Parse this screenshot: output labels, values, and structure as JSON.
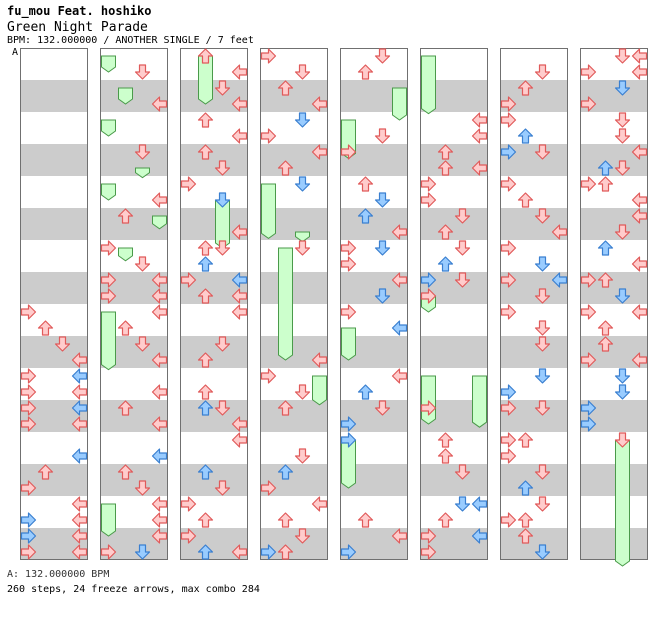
{
  "header": {
    "artist": "fu_mou Feat. hoshiko",
    "title": "Green Night Parade",
    "meta": "BPM: 132.000000 / ANOTHER SINGLE / 7 feet"
  },
  "section_label": "A",
  "footer": {
    "bpm_line": "A: 132.000000 BPM",
    "stats_line": "260 steps, 24 freeze arrows, max combo 284"
  },
  "colors": {
    "stripe": "#cccccc",
    "arrow_red_fill": "#ffcccc",
    "arrow_red_stroke": "#e05a5a",
    "arrow_blue_fill": "#99ccff",
    "arrow_blue_stroke": "#3a7fd0",
    "freeze_fill": "#ccffcc",
    "freeze_stroke": "#4a9a4a"
  },
  "chart_data": {
    "type": "step-chart",
    "columns": 8,
    "beats_per_column": 16,
    "lane_order": [
      "left",
      "down",
      "up",
      "right"
    ],
    "notes": [
      [
        {
          "b": 8.0,
          "l": 0
        },
        {
          "b": 8.5,
          "l": 1
        },
        {
          "b": 9.0,
          "l": 2
        },
        {
          "b": 9.5,
          "l": 3
        },
        {
          "b": 10.0,
          "l": 0
        },
        {
          "b": 10.0,
          "l": 3,
          "c": "blue"
        },
        {
          "b": 10.5,
          "l": 0
        },
        {
          "b": 10.5,
          "l": 3
        },
        {
          "b": 11.0,
          "l": 0
        },
        {
          "b": 11.0,
          "l": 3,
          "c": "blue"
        },
        {
          "b": 11.5,
          "l": 0
        },
        {
          "b": 11.5,
          "l": 3
        },
        {
          "b": 12.5,
          "l": 3,
          "c": "blue"
        },
        {
          "b": 13.0,
          "l": 1
        },
        {
          "b": 13.5,
          "l": 0
        },
        {
          "b": 14.0,
          "l": 3
        },
        {
          "b": 14.5,
          "l": 0,
          "c": "blue"
        },
        {
          "b": 14.5,
          "l": 3
        },
        {
          "b": 15.0,
          "l": 0,
          "c": "blue"
        },
        {
          "b": 15.0,
          "l": 3
        },
        {
          "b": 15.5,
          "l": 0
        },
        {
          "b": 15.5,
          "l": 3
        }
      ],
      [
        {
          "b": 0.0,
          "l": 0,
          "fz": 0.5
        },
        {
          "b": 0.5,
          "l": 2
        },
        {
          "b": 1.0,
          "l": 1,
          "fz": 0.5
        },
        {
          "b": 1.5,
          "l": 3
        },
        {
          "b": 2.0,
          "l": 0,
          "fz": 0.5
        },
        {
          "b": 3.0,
          "l": 2
        },
        {
          "b": 3.5,
          "l": 2,
          "fz": 0.3
        },
        {
          "b": 4.0,
          "l": 0,
          "fz": 0.5
        },
        {
          "b": 4.5,
          "l": 3
        },
        {
          "b": 5.0,
          "l": 3,
          "fz": 0.4
        },
        {
          "b": 5.0,
          "l": 1
        },
        {
          "b": 6.0,
          "l": 0
        },
        {
          "b": 6.0,
          "l": 1,
          "fz": 0.4
        },
        {
          "b": 6.5,
          "l": 2
        },
        {
          "b": 7.0,
          "l": 0
        },
        {
          "b": 7.0,
          "l": 3
        },
        {
          "b": 7.5,
          "l": 0
        },
        {
          "b": 7.5,
          "l": 3
        },
        {
          "b": 8.0,
          "l": 0,
          "fz": 1.8
        },
        {
          "b": 8.0,
          "l": 3
        },
        {
          "b": 8.5,
          "l": 1
        },
        {
          "b": 9.0,
          "l": 2
        },
        {
          "b": 9.5,
          "l": 3
        },
        {
          "b": 10.5,
          "l": 3
        },
        {
          "b": 11.0,
          "l": 1
        },
        {
          "b": 11.5,
          "l": 3
        },
        {
          "b": 12.5,
          "l": 3,
          "c": "blue"
        },
        {
          "b": 13.0,
          "l": 1
        },
        {
          "b": 13.5,
          "l": 2
        },
        {
          "b": 14.0,
          "l": 0,
          "fz": 1.0
        },
        {
          "b": 14.0,
          "l": 3
        },
        {
          "b": 14.5,
          "l": 3
        },
        {
          "b": 15.0,
          "l": 3
        },
        {
          "b": 15.5,
          "l": 0
        },
        {
          "b": 15.5,
          "l": 2,
          "c": "blue"
        }
      ],
      [
        {
          "b": 0.0,
          "l": 1
        },
        {
          "b": 0.0,
          "l": 1,
          "fz": 1.5
        },
        {
          "b": 0.5,
          "l": 3
        },
        {
          "b": 1.0,
          "l": 2
        },
        {
          "b": 1.5,
          "l": 3
        },
        {
          "b": 2.0,
          "l": 1
        },
        {
          "b": 2.5,
          "l": 3
        },
        {
          "b": 3.0,
          "l": 1
        },
        {
          "b": 3.5,
          "l": 2
        },
        {
          "b": 4.0,
          "l": 0
        },
        {
          "b": 4.5,
          "l": 2,
          "c": "blue"
        },
        {
          "b": 4.5,
          "l": 2,
          "fz": 1.5
        },
        {
          "b": 5.5,
          "l": 3
        },
        {
          "b": 6.0,
          "l": 1
        },
        {
          "b": 6.0,
          "l": 2
        },
        {
          "b": 6.5,
          "l": 1,
          "c": "blue"
        },
        {
          "b": 7.0,
          "l": 0
        },
        {
          "b": 7.0,
          "l": 3,
          "c": "blue"
        },
        {
          "b": 7.5,
          "l": 1
        },
        {
          "b": 7.5,
          "l": 3
        },
        {
          "b": 8.0,
          "l": 3
        },
        {
          "b": 9.0,
          "l": 2
        },
        {
          "b": 9.5,
          "l": 1
        },
        {
          "b": 10.5,
          "l": 1
        },
        {
          "b": 11.0,
          "l": 2
        },
        {
          "b": 11.0,
          "l": 1,
          "c": "blue"
        },
        {
          "b": 11.5,
          "l": 3
        },
        {
          "b": 12.0,
          "l": 3
        },
        {
          "b": 13.0,
          "l": 1,
          "c": "blue"
        },
        {
          "b": 13.5,
          "l": 2
        },
        {
          "b": 14.0,
          "l": 0
        },
        {
          "b": 14.5,
          "l": 1
        },
        {
          "b": 15.0,
          "l": 0
        },
        {
          "b": 15.5,
          "l": 1,
          "c": "blue"
        },
        {
          "b": 15.5,
          "l": 3
        }
      ],
      [
        {
          "b": 0.0,
          "l": 0
        },
        {
          "b": 0.5,
          "l": 2
        },
        {
          "b": 1.0,
          "l": 1
        },
        {
          "b": 1.5,
          "l": 3
        },
        {
          "b": 2.0,
          "l": 2,
          "c": "blue"
        },
        {
          "b": 2.5,
          "l": 0
        },
        {
          "b": 3.0,
          "l": 3
        },
        {
          "b": 3.5,
          "l": 1
        },
        {
          "b": 4.0,
          "l": 2,
          "c": "blue"
        },
        {
          "b": 4.0,
          "l": 0,
          "fz": 1.7
        },
        {
          "b": 5.5,
          "l": 2,
          "fz": 0.3
        },
        {
          "b": 6.0,
          "l": 2
        },
        {
          "b": 6.0,
          "l": 1,
          "fz": 3.5
        },
        {
          "b": 9.5,
          "l": 3
        },
        {
          "b": 10.0,
          "l": 0
        },
        {
          "b": 10.0,
          "l": 3,
          "fz": 0.9
        },
        {
          "b": 10.5,
          "l": 2
        },
        {
          "b": 11.0,
          "l": 1
        },
        {
          "b": 12.5,
          "l": 2
        },
        {
          "b": 13.0,
          "l": 1,
          "c": "blue"
        },
        {
          "b": 13.5,
          "l": 0
        },
        {
          "b": 14.0,
          "l": 3
        },
        {
          "b": 14.5,
          "l": 1
        },
        {
          "b": 15.0,
          "l": 2
        },
        {
          "b": 15.5,
          "l": 1
        },
        {
          "b": 15.5,
          "l": 0,
          "c": "blue"
        }
      ],
      [
        {
          "b": 0.0,
          "l": 2
        },
        {
          "b": 0.5,
          "l": 1
        },
        {
          "b": 1.0,
          "l": 3,
          "fz": 1.0
        },
        {
          "b": 2.0,
          "l": 0,
          "fz": 1.2
        },
        {
          "b": 2.5,
          "l": 2
        },
        {
          "b": 3.0,
          "l": 0
        },
        {
          "b": 4.0,
          "l": 1
        },
        {
          "b": 4.5,
          "l": 2,
          "c": "blue"
        },
        {
          "b": 5.0,
          "l": 1,
          "c": "blue"
        },
        {
          "b": 5.5,
          "l": 3
        },
        {
          "b": 6.0,
          "l": 0
        },
        {
          "b": 6.0,
          "l": 2,
          "c": "blue"
        },
        {
          "b": 6.5,
          "l": 0
        },
        {
          "b": 7.0,
          "l": 3
        },
        {
          "b": 7.5,
          "l": 2,
          "c": "blue"
        },
        {
          "b": 8.0,
          "l": 0
        },
        {
          "b": 8.5,
          "l": 0,
          "fz": 1.0
        },
        {
          "b": 8.5,
          "l": 3,
          "c": "blue"
        },
        {
          "b": 10.0,
          "l": 3
        },
        {
          "b": 10.5,
          "l": 1,
          "c": "blue"
        },
        {
          "b": 11.0,
          "l": 2
        },
        {
          "b": 11.5,
          "l": 0,
          "c": "blue"
        },
        {
          "b": 12.0,
          "l": 0,
          "c": "blue"
        },
        {
          "b": 12.0,
          "l": 0,
          "fz": 1.5
        },
        {
          "b": 14.5,
          "l": 1
        },
        {
          "b": 15.0,
          "l": 3
        },
        {
          "b": 15.5,
          "l": 0,
          "c": "blue"
        }
      ],
      [
        {
          "b": 0.0,
          "l": 0,
          "fz": 1.8
        },
        {
          "b": 2.0,
          "l": 3
        },
        {
          "b": 2.5,
          "l": 3
        },
        {
          "b": 3.0,
          "l": 1
        },
        {
          "b": 3.5,
          "l": 1
        },
        {
          "b": 3.5,
          "l": 3
        },
        {
          "b": 4.0,
          "l": 0
        },
        {
          "b": 4.5,
          "l": 0
        },
        {
          "b": 5.0,
          "l": 2
        },
        {
          "b": 5.5,
          "l": 1
        },
        {
          "b": 6.0,
          "l": 2
        },
        {
          "b": 6.5,
          "l": 1,
          "c": "blue"
        },
        {
          "b": 7.0,
          "l": 0,
          "c": "blue"
        },
        {
          "b": 7.0,
          "l": 2
        },
        {
          "b": 7.5,
          "l": 0
        },
        {
          "b": 7.5,
          "l": 0,
          "fz": 0.5
        },
        {
          "b": 10.0,
          "l": 0,
          "fz": 1.5
        },
        {
          "b": 10.0,
          "l": 3,
          "fz": 1.6
        },
        {
          "b": 11.0,
          "l": 0
        },
        {
          "b": 12.0,
          "l": 1
        },
        {
          "b": 12.5,
          "l": 1
        },
        {
          "b": 13.0,
          "l": 2
        },
        {
          "b": 14.0,
          "l": 2,
          "c": "blue"
        },
        {
          "b": 14.0,
          "l": 3,
          "c": "blue"
        },
        {
          "b": 14.5,
          "l": 1
        },
        {
          "b": 15.0,
          "l": 3,
          "c": "blue"
        },
        {
          "b": 15.0,
          "l": 0
        },
        {
          "b": 15.5,
          "l": 0
        }
      ],
      [
        {
          "b": 0.5,
          "l": 2
        },
        {
          "b": 1.0,
          "l": 1
        },
        {
          "b": 1.5,
          "l": 0
        },
        {
          "b": 2.0,
          "l": 0
        },
        {
          "b": 2.5,
          "l": 1,
          "c": "blue"
        },
        {
          "b": 3.0,
          "l": 0,
          "c": "blue"
        },
        {
          "b": 3.0,
          "l": 2
        },
        {
          "b": 4.0,
          "l": 0
        },
        {
          "b": 4.5,
          "l": 1
        },
        {
          "b": 5.0,
          "l": 2
        },
        {
          "b": 5.5,
          "l": 3
        },
        {
          "b": 6.0,
          "l": 0
        },
        {
          "b": 6.5,
          "l": 2,
          "c": "blue"
        },
        {
          "b": 7.0,
          "l": 0
        },
        {
          "b": 7.0,
          "l": 3,
          "c": "blue"
        },
        {
          "b": 7.5,
          "l": 2
        },
        {
          "b": 8.0,
          "l": 0
        },
        {
          "b": 8.5,
          "l": 2
        },
        {
          "b": 9.0,
          "l": 2
        },
        {
          "b": 10.0,
          "l": 2,
          "c": "blue"
        },
        {
          "b": 10.5,
          "l": 0,
          "c": "blue"
        },
        {
          "b": 11.0,
          "l": 0
        },
        {
          "b": 11.0,
          "l": 2
        },
        {
          "b": 12.0,
          "l": 0
        },
        {
          "b": 12.0,
          "l": 1
        },
        {
          "b": 12.5,
          "l": 0
        },
        {
          "b": 13.0,
          "l": 2
        },
        {
          "b": 13.5,
          "l": 1,
          "c": "blue"
        },
        {
          "b": 14.0,
          "l": 2
        },
        {
          "b": 14.5,
          "l": 1
        },
        {
          "b": 14.5,
          "l": 0
        },
        {
          "b": 15.0,
          "l": 1
        },
        {
          "b": 15.5,
          "l": 2,
          "c": "blue"
        }
      ],
      [
        {
          "b": 0.0,
          "l": 2
        },
        {
          "b": 0.0,
          "l": 3
        },
        {
          "b": 0.5,
          "l": 0
        },
        {
          "b": 0.5,
          "l": 3
        },
        {
          "b": 1.0,
          "l": 2,
          "c": "blue"
        },
        {
          "b": 1.5,
          "l": 0
        },
        {
          "b": 2.0,
          "l": 2
        },
        {
          "b": 2.5,
          "l": 2
        },
        {
          "b": 3.0,
          "l": 3
        },
        {
          "b": 3.5,
          "l": 2
        },
        {
          "b": 3.5,
          "l": 1,
          "c": "blue"
        },
        {
          "b": 4.0,
          "l": 0
        },
        {
          "b": 4.0,
          "l": 1
        },
        {
          "b": 4.5,
          "l": 3
        },
        {
          "b": 5.0,
          "l": 3
        },
        {
          "b": 5.5,
          "l": 2
        },
        {
          "b": 6.0,
          "l": 1,
          "c": "blue"
        },
        {
          "b": 6.5,
          "l": 3
        },
        {
          "b": 7.0,
          "l": 1
        },
        {
          "b": 7.0,
          "l": 0
        },
        {
          "b": 7.5,
          "l": 2,
          "c": "blue"
        },
        {
          "b": 8.0,
          "l": 0
        },
        {
          "b": 8.0,
          "l": 3
        },
        {
          "b": 8.5,
          "l": 1
        },
        {
          "b": 9.0,
          "l": 1
        },
        {
          "b": 9.5,
          "l": 0
        },
        {
          "b": 9.5,
          "l": 3
        },
        {
          "b": 10.0,
          "l": 2,
          "c": "blue"
        },
        {
          "b": 10.5,
          "l": 2,
          "c": "blue"
        },
        {
          "b": 11.0,
          "l": 0,
          "c": "blue"
        },
        {
          "b": 11.5,
          "l": 0,
          "c": "blue"
        },
        {
          "b": 12.0,
          "l": 2
        },
        {
          "b": 12.0,
          "l": 2,
          "fz": 4.0
        }
      ]
    ]
  }
}
